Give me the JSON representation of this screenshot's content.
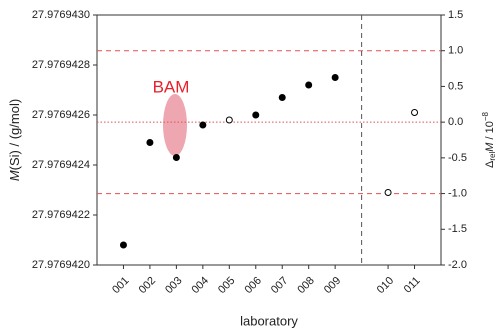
{
  "chart_data": {
    "type": "scatter",
    "categories": [
      "001",
      "002",
      "003",
      "004",
      "005",
      "006",
      "007",
      "008",
      "009",
      null,
      "010",
      "011"
    ],
    "series": [
      {
        "color": "#000000",
        "marker_fill": "#000000",
        "values": [
          27.97694208,
          27.97694249,
          27.97694243,
          27.97694256,
          null,
          27.9769426,
          27.97694267,
          27.97694272,
          27.97694275,
          null,
          null,
          null
        ]
      },
      {
        "color": "#000000",
        "marker_fill": "#ffffff",
        "values": [
          null,
          null,
          null,
          null,
          27.97694258,
          null,
          null,
          null,
          null,
          null,
          27.97694229,
          27.97694261
        ]
      }
    ],
    "ylim": [
      27.976942,
      27.976943
    ],
    "yticks": [
      {
        "value": 27.976942,
        "label": "27.9769420"
      },
      {
        "value": 27.9769422,
        "label": "27.9769422"
      },
      {
        "value": 27.9769424,
        "label": "27.9769424"
      },
      {
        "value": 27.9769426,
        "label": "27.9769426"
      },
      {
        "value": 27.9769428,
        "label": "27.9769428"
      },
      {
        "value": 27.976943,
        "label": "27.9769430"
      }
    ],
    "y2lim": [
      -2,
      1.5
    ],
    "y2ticks": [
      {
        "value": -2,
        "label": "-2.0"
      },
      -1.5,
      {
        "value": -1,
        "label": "-1.0"
      },
      -0.5,
      {
        "value": 0,
        "label": "0.0"
      },
      0.5,
      {
        "value": 1,
        "label": "1.0"
      },
      1.5
    ],
    "y2_lines": [
      {
        "value": 1,
        "style": "dashed"
      },
      {
        "value": 0,
        "style": "dotted"
      },
      {
        "value": -1,
        "style": "dashed"
      }
    ],
    "line_color": "#e05050",
    "annotation": "BAM",
    "annotation_color": "#e8202a",
    "xlabel": "laboratory",
    "ylabel": [
      "M",
      "(Si) / (g/mol)"
    ],
    "y2label": [
      "Δ",
      "rel",
      "M",
      " / 10",
      "−8"
    ]
  }
}
